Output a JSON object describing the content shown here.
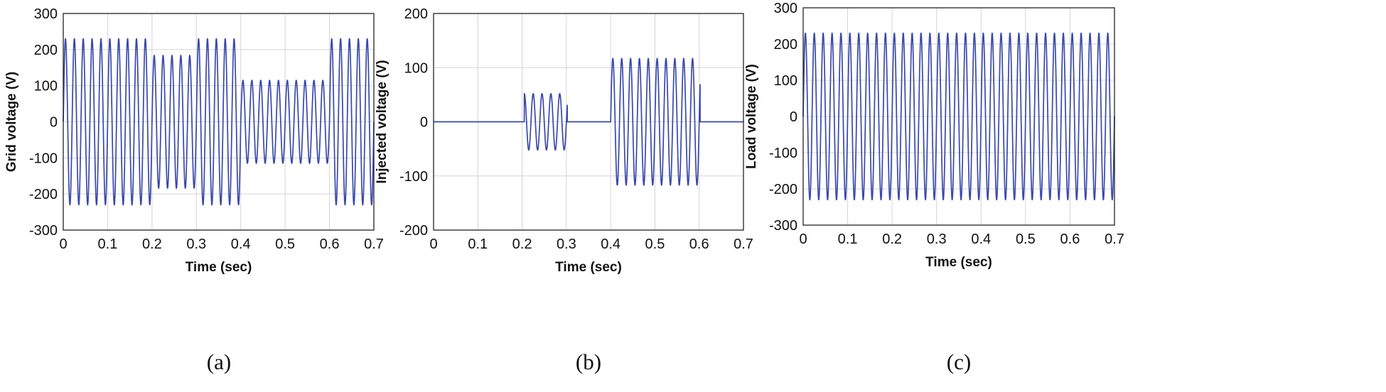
{
  "colors": {
    "trace": "#3949ab",
    "grid": "#d4d4d4",
    "axis": "#222222"
  },
  "chart_data": [
    {
      "type": "line",
      "caption": "(a)",
      "xlabel": "Time (sec)",
      "ylabel": "Grid voltage (V)",
      "xlim": [
        0,
        0.7
      ],
      "ylim": [
        -300,
        300
      ],
      "xticks": [
        0,
        0.1,
        0.2,
        0.3,
        0.4,
        0.5,
        0.6,
        0.7
      ],
      "yticks": [
        300,
        200,
        100,
        0,
        -100,
        -200,
        -300
      ],
      "grid": true,
      "series": [
        {
          "waveform": "sine",
          "frequency_hz": 50,
          "segments": [
            {
              "t_start": 0.0,
              "t_end": 0.2,
              "amplitude": 230
            },
            {
              "t_start": 0.2,
              "t_end": 0.3,
              "amplitude": 184
            },
            {
              "t_start": 0.3,
              "t_end": 0.4,
              "amplitude": 230
            },
            {
              "t_start": 0.4,
              "t_end": 0.6,
              "amplitude": 115
            },
            {
              "t_start": 0.6,
              "t_end": 0.7,
              "amplitude": 230
            }
          ]
        }
      ]
    },
    {
      "type": "line",
      "caption": "(b)",
      "xlabel": "Time (sec)",
      "ylabel": "Injected voltage (V)",
      "xlim": [
        0,
        0.7
      ],
      "ylim": [
        -200,
        200
      ],
      "xticks": [
        0,
        0.1,
        0.2,
        0.3,
        0.4,
        0.5,
        0.6,
        0.7
      ],
      "yticks": [
        200,
        100,
        0,
        -100,
        -200
      ],
      "grid": true,
      "series": [
        {
          "waveform": "sine",
          "frequency_hz": 50,
          "segments": [
            {
              "t_start": 0.0,
              "t_end": 0.205,
              "amplitude": 0
            },
            {
              "t_start": 0.205,
              "t_end": 0.302,
              "amplitude": 52
            },
            {
              "t_start": 0.302,
              "t_end": 0.4,
              "amplitude": 0
            },
            {
              "t_start": 0.4,
              "t_end": 0.602,
              "amplitude": 117
            },
            {
              "t_start": 0.602,
              "t_end": 0.7,
              "amplitude": 0
            }
          ]
        }
      ]
    },
    {
      "type": "line",
      "caption": "(c)",
      "xlabel": "Time (sec)",
      "ylabel": "Load voltage (V)",
      "xlim": [
        0,
        0.7
      ],
      "ylim": [
        -300,
        300
      ],
      "xticks": [
        0,
        0.1,
        0.2,
        0.3,
        0.4,
        0.5,
        0.6,
        0.7
      ],
      "yticks": [
        300,
        200,
        100,
        0,
        -100,
        -200,
        -300
      ],
      "grid": true,
      "series": [
        {
          "waveform": "sine",
          "frequency_hz": 50,
          "segments": [
            {
              "t_start": 0.0,
              "t_end": 0.7,
              "amplitude": 230
            }
          ]
        }
      ]
    }
  ]
}
